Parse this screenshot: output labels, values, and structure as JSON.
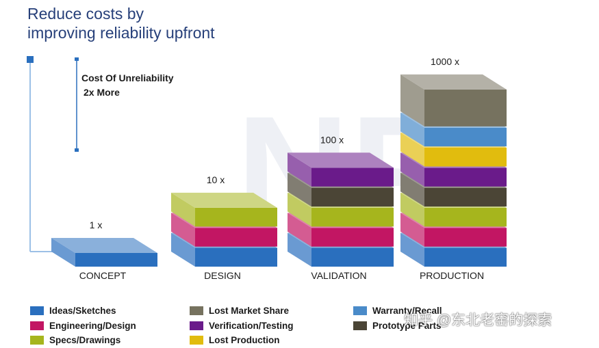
{
  "header": {
    "title_line1": "Reduce costs by",
    "title_line2": "improving reliability upfront"
  },
  "annotation": {
    "line1": "Cost Of Unreliability",
    "line2": "2x More"
  },
  "colors": {
    "ideas": "#2a6fbe",
    "engineering": "#c21663",
    "specs": "#a6b51d",
    "lost_market": "#76725f",
    "verification": "#6a1b8a",
    "lost_production": "#e1bc0e",
    "warranty": "#4a8bc9",
    "prototype": "#4b4536"
  },
  "legend": {
    "col1": [
      {
        "label": "Ideas/Sketches",
        "color_key": "ideas"
      },
      {
        "label": "Engineering/Design",
        "color_key": "engineering"
      },
      {
        "label": "Specs/Drawings",
        "color_key": "specs"
      }
    ],
    "col2": [
      {
        "label": "Lost Market Share",
        "color_key": "lost_market"
      },
      {
        "label": "Verification/Testing",
        "color_key": "verification"
      },
      {
        "label": "Lost Production",
        "color_key": "lost_production"
      }
    ],
    "col3": [
      {
        "label": "Warranty/Recall",
        "color_key": "warranty"
      },
      {
        "label": "Prototype Parts",
        "color_key": "prototype"
      }
    ]
  },
  "watermark": "知乎 @东北老窑的探索",
  "chart_data": {
    "type": "bar",
    "title": "Reduce costs by improving reliability upfront",
    "categories": [
      "CONCEPT",
      "DESIGN",
      "VALIDATION",
      "PRODUCTION"
    ],
    "value_labels": [
      "1 x",
      "10 x",
      "100 x",
      "1000 x"
    ],
    "values": [
      1,
      10,
      100,
      1000
    ],
    "stacks": [
      [
        "ideas"
      ],
      [
        "ideas",
        "engineering",
        "specs"
      ],
      [
        "ideas",
        "engineering",
        "specs",
        "prototype",
        "verification"
      ],
      [
        "ideas",
        "engineering",
        "specs",
        "prototype",
        "verification",
        "lost_production",
        "warranty",
        "lost_market"
      ]
    ]
  }
}
